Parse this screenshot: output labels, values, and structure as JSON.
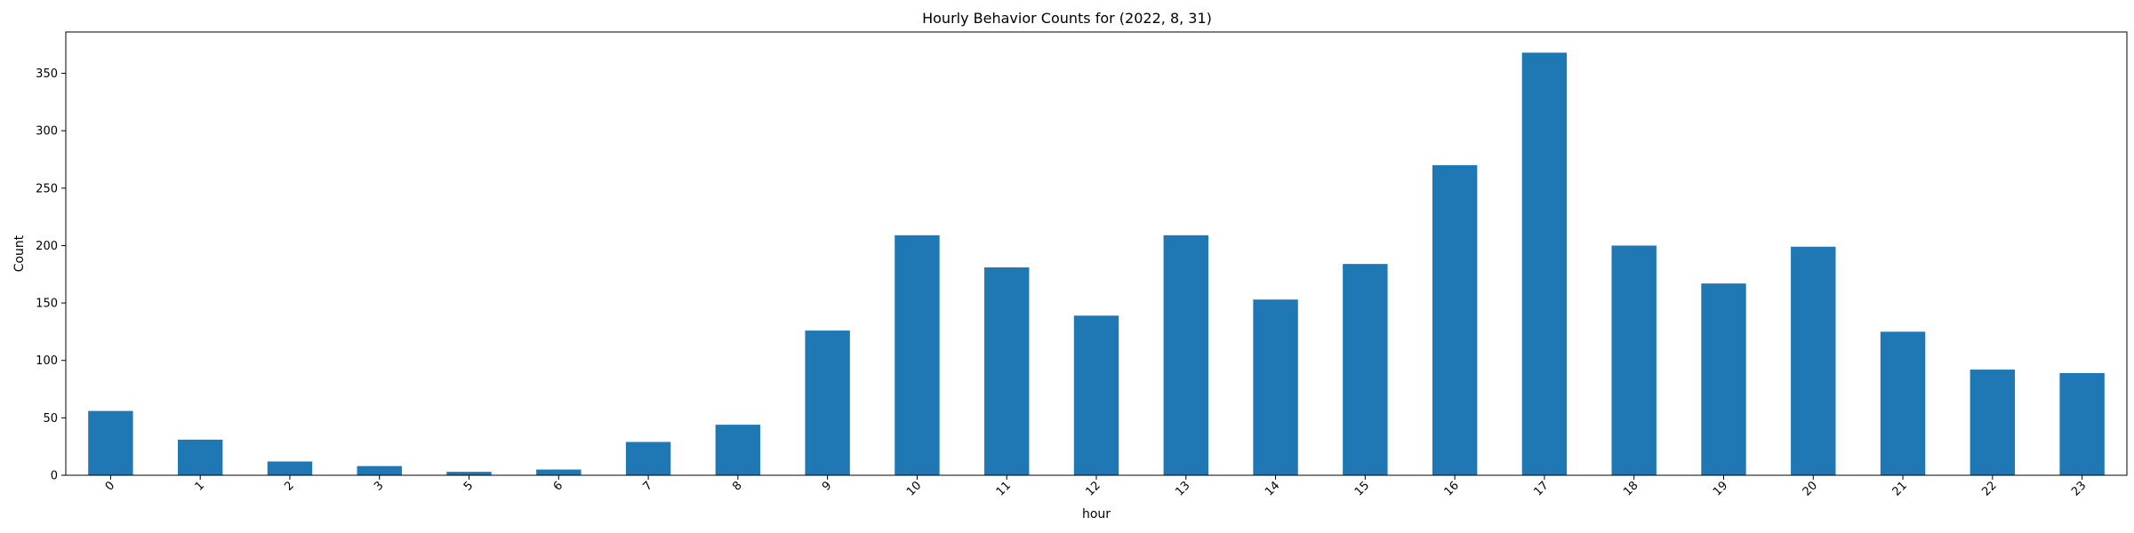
{
  "chart_data": {
    "type": "bar",
    "title": "Hourly Behavior Counts for (2022, 8, 31)",
    "xlabel": "hour",
    "ylabel": "Count",
    "categories": [
      "0",
      "1",
      "2",
      "3",
      "5",
      "6",
      "7",
      "8",
      "9",
      "10",
      "11",
      "12",
      "13",
      "14",
      "15",
      "16",
      "17",
      "18",
      "19",
      "20",
      "21",
      "22",
      "23"
    ],
    "values": [
      56,
      31,
      12,
      8,
      3,
      5,
      29,
      44,
      126,
      209,
      181,
      139,
      209,
      153,
      184,
      270,
      368,
      200,
      167,
      199,
      125,
      92,
      89
    ],
    "ylim": [
      0,
      386
    ],
    "yticks": [
      0,
      50,
      100,
      150,
      200,
      250,
      300,
      350
    ],
    "bar_color": "#1f77b4",
    "grid": false,
    "legend": "none"
  }
}
